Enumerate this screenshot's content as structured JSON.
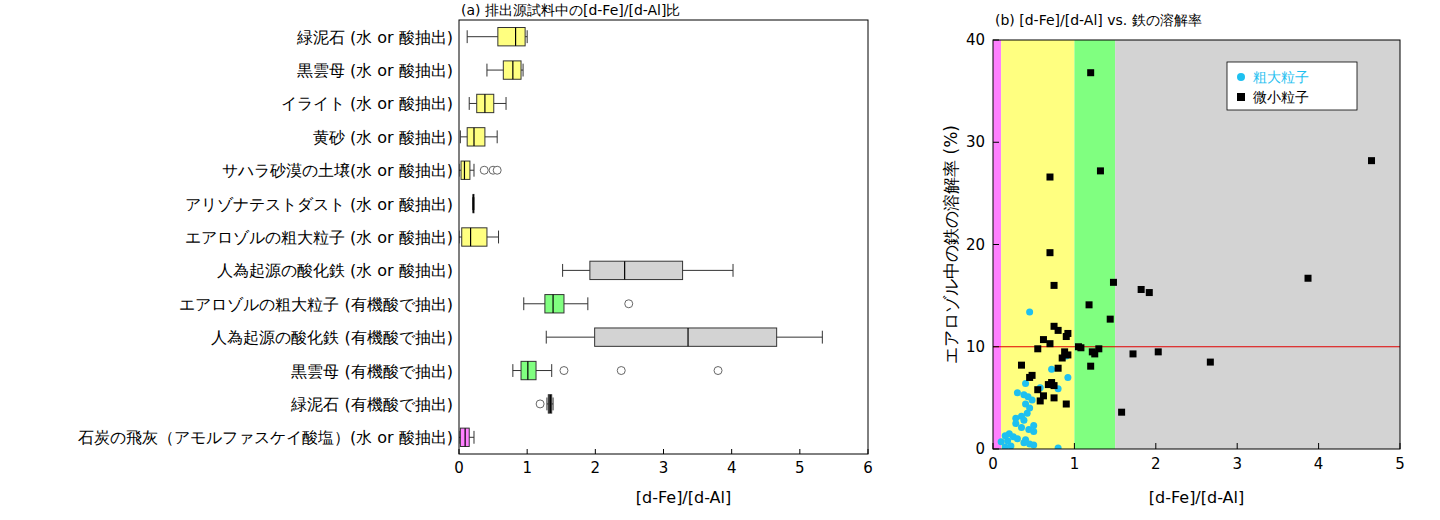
{
  "chart_data": [
    {
      "type": "box",
      "orientation": "horizontal",
      "title": "(a) 排出源試料中の[d-Fe]/[d-Al]比",
      "x_label": "[d-Fe]/[d-Al]",
      "xlim": [
        0,
        6
      ],
      "xticks": [
        0,
        1,
        2,
        3,
        4,
        5,
        6
      ],
      "grid": false,
      "categories": [
        "緑泥石 (水 or 酸抽出)",
        "黒雲母 (水 or 酸抽出)",
        "イライト (水 or 酸抽出)",
        "黄砂 (水 or 酸抽出)",
        "サハラ砂漠の土壌(水 or 酸抽出)",
        "アリゾナテストダスト (水 or 酸抽出)",
        "エアロゾルの粗大粒子 (水 or 酸抽出)",
        "人為起源の酸化鉄 (水 or 酸抽出)",
        "エアロゾルの粗大粒子 (有機酸で抽出)",
        "人為起源の酸化鉄 (有機酸で抽出)",
        "黒雲母 (有機酸で抽出)",
        "緑泥石 (有機酸で抽出)",
        "石炭の飛灰（アモルファスケイ酸塩）(水 or 酸抽出)"
      ],
      "colors": [
        "#ffff80",
        "#ffff80",
        "#ffff80",
        "#ffff80",
        "#ffff80",
        "#ffff80",
        "#ffff80",
        "#d3d3d3",
        "#80ff80",
        "#d3d3d3",
        "#80ff80",
        "#404040",
        "#ff80ff"
      ],
      "boxes": [
        {
          "min": 0.12,
          "q1": 0.57,
          "median": 0.83,
          "q3": 0.97,
          "max": 1.0,
          "outliers": []
        },
        {
          "min": 0.41,
          "q1": 0.65,
          "median": 0.79,
          "q3": 0.91,
          "max": 0.94,
          "outliers": []
        },
        {
          "min": 0.15,
          "q1": 0.26,
          "median": 0.38,
          "q3": 0.51,
          "max": 0.69,
          "outliers": []
        },
        {
          "min": 0.02,
          "q1": 0.12,
          "median": 0.22,
          "q3": 0.38,
          "max": 0.56,
          "outliers": []
        },
        {
          "min": 0.0,
          "q1": 0.03,
          "median": 0.08,
          "q3": 0.16,
          "max": 0.22,
          "outliers": [
            0.37,
            0.5,
            0.56
          ]
        },
        {
          "min": 0.2,
          "q1": 0.205,
          "median": 0.21,
          "q3": 0.215,
          "max": 0.22,
          "outliers": []
        },
        {
          "min": 0.0,
          "q1": 0.04,
          "median": 0.17,
          "q3": 0.41,
          "max": 0.58,
          "outliers": []
        },
        {
          "min": 1.52,
          "q1": 1.92,
          "median": 2.43,
          "q3": 3.28,
          "max": 4.02,
          "outliers": []
        },
        {
          "min": 0.95,
          "q1": 1.26,
          "median": 1.38,
          "q3": 1.54,
          "max": 1.89,
          "outliers": [
            2.49
          ]
        },
        {
          "min": 1.28,
          "q1": 1.99,
          "median": 3.36,
          "q3": 4.66,
          "max": 5.33,
          "outliers": []
        },
        {
          "min": 0.79,
          "q1": 0.91,
          "median": 1.01,
          "q3": 1.13,
          "max": 1.36,
          "outliers": [
            1.54,
            2.38,
            3.8
          ]
        },
        {
          "min": 1.29,
          "q1": 1.31,
          "median": 1.34,
          "q3": 1.36,
          "max": 1.38,
          "outliers": [
            1.19
          ]
        },
        {
          "min": 0.0,
          "q1": 0.02,
          "median": 0.09,
          "q3": 0.15,
          "max": 0.22,
          "outliers": []
        }
      ]
    },
    {
      "type": "scatter",
      "title": "(b) [d-Fe]/[d-Al] vs. 鉄の溶解率",
      "x_label": "[d-Fe]/[d-Al]",
      "y_label": "エアロゾル中の鉄の溶解率 (%)",
      "xlim": [
        0,
        5
      ],
      "xticks": [
        0,
        1,
        2,
        3,
        4,
        5
      ],
      "ylim": [
        0,
        40
      ],
      "yticks": [
        0,
        10,
        20,
        30,
        40
      ],
      "grid": false,
      "legend": "upper-right",
      "bands": [
        {
          "from": 0,
          "to": 0.1,
          "color": "#ff80ff"
        },
        {
          "from": 0.1,
          "to": 1.0,
          "color": "#ffff80"
        },
        {
          "from": 1.0,
          "to": 1.5,
          "color": "#80ff80"
        },
        {
          "from": 1.5,
          "to": 5,
          "color": "#d3d3d3"
        }
      ],
      "reference_line": {
        "value": 10,
        "color": "#e00000"
      },
      "series": [
        {
          "name": "粗大粒子",
          "color": "#1ec0f0",
          "marker": "circle",
          "x": [
            0.45,
            0.9,
            0.72,
            0.92,
            0.4,
            0.58,
            0.3,
            0.38,
            0.43,
            0.48,
            0.4,
            0.45,
            0.42,
            0.35,
            0.38,
            0.28,
            0.35,
            0.44,
            0.2,
            0.25,
            0.3,
            0.18,
            0.38,
            0.45,
            0.22,
            0.15,
            0.8,
            0.5,
            0.4,
            0.5,
            0.5,
            0.28,
            0.15,
            0.1,
            0.8
          ],
          "values": [
            13.4,
            9.1,
            7.8,
            7.0,
            6.4,
            6.0,
            5.5,
            5.3,
            5.1,
            4.8,
            4.4,
            4.0,
            3.5,
            3.2,
            2.8,
            2.5,
            2.1,
            1.9,
            1.5,
            1.2,
            1.0,
            0.8,
            0.6,
            0.5,
            0.3,
            0.2,
            0.1,
            0.4,
            0.9,
            1.7,
            2.3,
            3.0,
            1.3,
            0.7,
            5.9
          ]
        },
        {
          "name": "微小粒子",
          "color": "#000000",
          "marker": "square",
          "x": [
            1.2,
            1.32,
            0.7,
            4.65,
            0.7,
            3.87,
            1.48,
            0.75,
            1.82,
            1.92,
            1.18,
            1.44,
            0.75,
            0.8,
            0.92,
            0.9,
            0.62,
            0.7,
            1.05,
            1.08,
            0.55,
            0.88,
            1.22,
            1.25,
            1.3,
            1.72,
            2.03,
            2.67,
            1.2,
            0.35,
            0.8,
            0.48,
            0.45,
            0.72,
            0.75,
            0.68,
            0.55,
            0.62,
            0.75,
            0.58,
            0.9,
            1.58,
            0.92,
            0.85
          ],
          "values": [
            36.8,
            27.2,
            26.6,
            28.2,
            19.2,
            16.7,
            16.3,
            16.0,
            15.6,
            15.3,
            14.1,
            12.7,
            12.0,
            11.6,
            11.3,
            11.0,
            10.7,
            10.3,
            10.0,
            9.9,
            9.8,
            9.5,
            9.5,
            9.3,
            9.8,
            9.3,
            9.5,
            8.5,
            8.1,
            8.2,
            7.9,
            7.2,
            7.0,
            6.5,
            6.2,
            6.3,
            5.8,
            5.2,
            5.0,
            4.7,
            4.4,
            3.6,
            9.2,
            8.9
          ]
        }
      ]
    }
  ]
}
